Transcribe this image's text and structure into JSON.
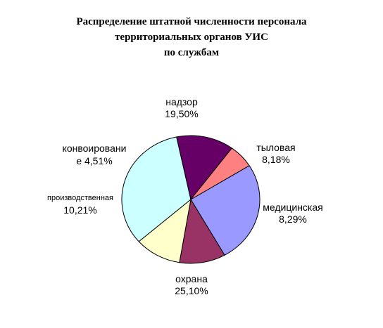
{
  "chart_data": {
    "type": "pie",
    "title_lines": [
      "Распределение штатной численности персонала",
      "территориальных органов УИС",
      "по службам"
    ],
    "start_angle_deg": 32,
    "slices": [
      {
        "name": "надзор",
        "value": 19.5,
        "value_text": "19,50%",
        "label_lines": [
          "надзор"
        ],
        "value_line": "19,50%",
        "color": "#9999ff"
      },
      {
        "name": "тыловая",
        "value": 8.18,
        "value_text": "8,18%",
        "label_lines": [
          "тыловая"
        ],
        "value_line": "8,18%",
        "color": "#993366"
      },
      {
        "name": "медицинская",
        "value": 8.29,
        "value_text": "8,29%",
        "label_lines": [
          "медицинская"
        ],
        "value_line": "8,29%",
        "color": "#ffffcc"
      },
      {
        "name": "охрана",
        "value": 25.1,
        "value_text": "25,10%",
        "label_lines": [
          "охрана"
        ],
        "value_line": "25,10%",
        "color": "#ccffff"
      },
      {
        "name": "производственная",
        "value": 10.21,
        "value_text": "10,21%",
        "label_lines": [
          "производственная"
        ],
        "value_line": "10,21%",
        "color": "#660066"
      },
      {
        "name": "конвоирование",
        "value": 4.51,
        "value_text": "4,51%",
        "label_lines": [
          "конвоировани",
          "е 4,51%"
        ],
        "value_line": "",
        "color": "#ff8080"
      }
    ]
  }
}
